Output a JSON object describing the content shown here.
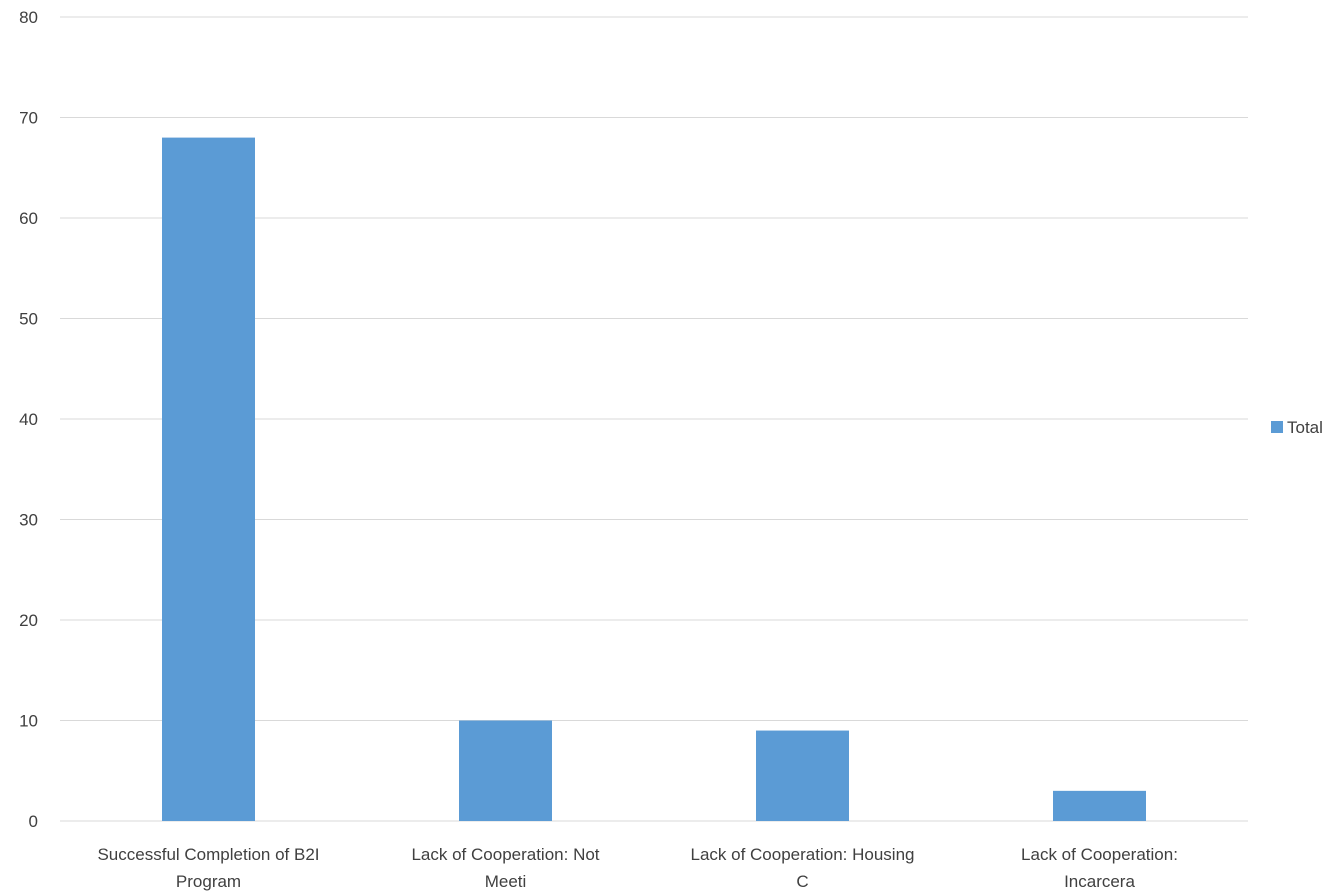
{
  "chart_data": {
    "type": "bar",
    "categories": [
      [
        "Successful Completion of B2I",
        "Program"
      ],
      [
        "Lack of Cooperation: Not",
        "Meeti"
      ],
      [
        "Lack of Cooperation: Housing",
        "C"
      ],
      [
        "Lack of Cooperation:",
        "Incarcera"
      ]
    ],
    "series": [
      {
        "name": "Total",
        "values": [
          68,
          10,
          9,
          3
        ],
        "color": "#5b9bd5"
      }
    ],
    "ylim": [
      0,
      80
    ],
    "yticks": [
      0,
      10,
      20,
      30,
      40,
      50,
      60,
      70,
      80
    ],
    "grid": true,
    "legend_position": "right",
    "colors": {
      "gridline": "#d9d9d9",
      "axis_text": "#404040"
    }
  }
}
